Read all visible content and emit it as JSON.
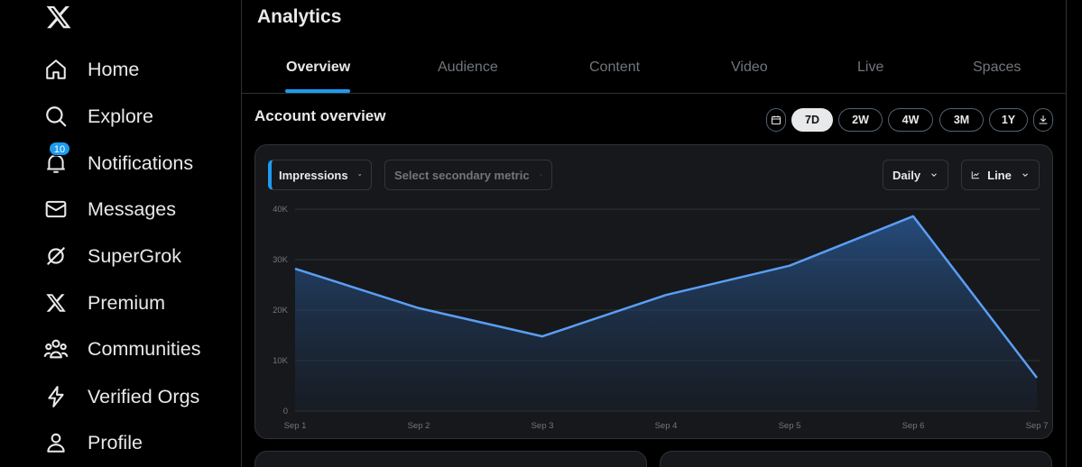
{
  "sidebar": {
    "items": [
      {
        "label": "Home",
        "icon": "home-icon"
      },
      {
        "label": "Explore",
        "icon": "search-icon"
      },
      {
        "label": "Notifications",
        "icon": "bell-icon",
        "badge": "10"
      },
      {
        "label": "Messages",
        "icon": "envelope-icon"
      },
      {
        "label": "SuperGrok",
        "icon": "grok-icon"
      },
      {
        "label": "Premium",
        "icon": "x-logo-icon"
      },
      {
        "label": "Communities",
        "icon": "people-icon"
      },
      {
        "label": "Verified Orgs",
        "icon": "lightning-icon"
      },
      {
        "label": "Profile",
        "icon": "person-icon"
      }
    ]
  },
  "header": {
    "title": "Analytics",
    "tabs": [
      {
        "label": "Overview",
        "active": true
      },
      {
        "label": "Audience"
      },
      {
        "label": "Content"
      },
      {
        "label": "Video"
      },
      {
        "label": "Live"
      },
      {
        "label": "Spaces"
      }
    ]
  },
  "overview": {
    "title": "Account overview",
    "ranges": [
      {
        "label": "7D",
        "active": true
      },
      {
        "label": "2W"
      },
      {
        "label": "4W"
      },
      {
        "label": "3M"
      },
      {
        "label": "1Y"
      }
    ],
    "controls": {
      "primary_metric": "Impressions",
      "secondary_metric_placeholder": "Select secondary metric",
      "granularity": "Daily",
      "chart_type": "Line"
    }
  },
  "colors": {
    "accent": "#1d9bf0",
    "line": "#5b9ef5",
    "card_bg": "#16181c"
  },
  "chart_data": {
    "type": "area",
    "x": [
      "Sep 1",
      "Sep 2",
      "Sep 3",
      "Sep 4",
      "Sep 5",
      "Sep 6",
      "Sep 7"
    ],
    "series": [
      {
        "name": "Impressions",
        "values": [
          28200,
          20400,
          14800,
          23000,
          28800,
          38600,
          6600
        ]
      }
    ],
    "y_ticks": [
      "0",
      "10K",
      "20K",
      "30K",
      "40K"
    ],
    "ylim": [
      0,
      40000
    ],
    "grid": true
  }
}
